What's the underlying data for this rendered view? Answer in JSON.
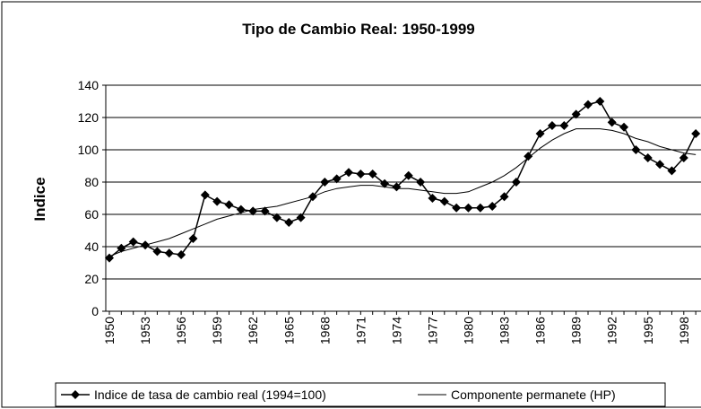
{
  "chart_data": {
    "type": "line",
    "title": "Tipo de Cambio Real: 1950-1999",
    "ylabel": "Indice",
    "categories": [
      "1950",
      null,
      null,
      "1953",
      null,
      null,
      "1956",
      null,
      null,
      "1959",
      null,
      null,
      "1962",
      null,
      null,
      "1965",
      null,
      null,
      "1968",
      null,
      null,
      "1971",
      null,
      null,
      "1974",
      null,
      null,
      "1977",
      null,
      null,
      "1980",
      null,
      null,
      "1983",
      null,
      null,
      "1986",
      null,
      null,
      "1989",
      null,
      null,
      "1992",
      null,
      null,
      "1995",
      null,
      null,
      "1998",
      null
    ],
    "series": [
      {
        "name": "Indice de tasa de cambio real (1994=100)",
        "color": "#000000",
        "marker": "diamond",
        "values": [
          33,
          39,
          43,
          41,
          37,
          36,
          35,
          45,
          72,
          68,
          66,
          63,
          62,
          62,
          58,
          55,
          58,
          71,
          80,
          82,
          86,
          85,
          85,
          79,
          77,
          84,
          80,
          70,
          68,
          64,
          64,
          64,
          65,
          71,
          80,
          96,
          110,
          115,
          115,
          122,
          128,
          130,
          117,
          114,
          100,
          95,
          91,
          87,
          95,
          110
        ]
      },
      {
        "name": "Componente permanete (HP)",
        "color": "#000000",
        "marker": "none",
        "values": [
          34,
          37,
          39,
          41,
          43,
          45,
          48,
          51,
          54,
          57,
          59,
          61,
          63,
          64,
          65,
          67,
          69,
          71,
          74,
          76,
          77,
          78,
          78,
          77,
          76,
          76,
          75,
          74,
          73,
          73,
          74,
          77,
          80,
          84,
          89,
          95,
          101,
          106,
          110,
          113,
          113,
          113,
          112,
          110,
          107,
          105,
          102,
          100,
          98,
          97
        ]
      }
    ],
    "ylim": [
      0,
      140
    ],
    "yticks": [
      0,
      20,
      40,
      60,
      80,
      100,
      120,
      140
    ],
    "grid": true,
    "legend": "bottom"
  }
}
